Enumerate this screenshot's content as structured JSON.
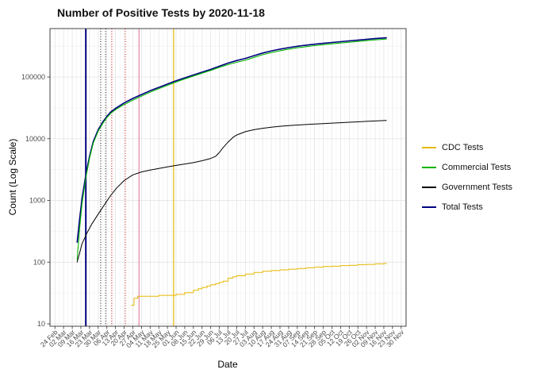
{
  "chart_data": {
    "type": "line",
    "title": "Number of Positive Tests by  2020-11-18",
    "xlabel": "Date",
    "ylabel": "Count (Log Scale)",
    "y_scale": "log10",
    "y_tick_labels": [
      "10",
      "100",
      "1000",
      "10000",
      "100000"
    ],
    "y_tick_values": [
      10,
      100,
      1000,
      10000,
      100000
    ],
    "ylim": [
      9.15,
      610000
    ],
    "x_unit": "days since 2020-02-24",
    "xlim": [
      -4,
      284
    ],
    "x_tick_days": [
      0,
      7,
      14,
      21,
      28,
      35,
      42,
      49,
      56,
      63,
      70,
      77,
      84,
      91,
      98,
      105,
      112,
      119,
      126,
      133,
      140,
      147,
      154,
      161,
      168,
      175,
      182,
      189,
      196,
      203,
      210,
      217,
      224,
      231,
      238,
      245,
      252,
      259,
      266,
      273,
      280
    ],
    "x_tick_labels": [
      "24 Feb",
      "02 Mar",
      "09 Mar",
      "16 Mar",
      "23 Mar",
      "30 Mar",
      "06 Apr",
      "13 Apr",
      "20 Apr",
      "27 Apr",
      "04 May",
      "11 May",
      "18 May",
      "25 May",
      "01 Jun",
      "08 Jun",
      "15 Jun",
      "22 Jun",
      "29 Jun",
      "06 Jul",
      "13 Jul",
      "20 Jul",
      "27 Jul",
      "03 Aug",
      "10 Aug",
      "17 Aug",
      "24 Aug",
      "31 Aug",
      "07 Sep",
      "14 Sep",
      "21 Sep",
      "28 Sep",
      "05 Oct",
      "12 Oct",
      "19 Oct",
      "26 Oct",
      "02 Nov",
      "09 Nov",
      "16 Nov",
      "23 Nov",
      "30 Nov"
    ],
    "legend_position": "right",
    "grid": true,
    "series": [
      {
        "name": "CDC Tests",
        "color": "#E6B800",
        "width": 1.0,
        "z": 4,
        "step": true,
        "points": [
          [
            62,
            20
          ],
          [
            64,
            26
          ],
          [
            67,
            28
          ],
          [
            70,
            28
          ],
          [
            84,
            29
          ],
          [
            98,
            30
          ],
          [
            105,
            32
          ],
          [
            112,
            35
          ],
          [
            116,
            37
          ],
          [
            119,
            39
          ],
          [
            123,
            41
          ],
          [
            126,
            43
          ],
          [
            130,
            45
          ],
          [
            133,
            47
          ],
          [
            136,
            49
          ],
          [
            140,
            55
          ],
          [
            144,
            58
          ],
          [
            147,
            60
          ],
          [
            154,
            64
          ],
          [
            161,
            68
          ],
          [
            168,
            71
          ],
          [
            175,
            73
          ],
          [
            182,
            75
          ],
          [
            189,
            77
          ],
          [
            196,
            79
          ],
          [
            203,
            81
          ],
          [
            210,
            83
          ],
          [
            217,
            85
          ],
          [
            224,
            86
          ],
          [
            231,
            88
          ],
          [
            238,
            89
          ],
          [
            245,
            91
          ],
          [
            252,
            92
          ],
          [
            259,
            94
          ],
          [
            266,
            95
          ],
          [
            268,
            96
          ]
        ]
      },
      {
        "name": "Commercial Tests",
        "color": "#00B400",
        "width": 1.1,
        "z": 2,
        "step": false,
        "points": [
          [
            18,
            110
          ],
          [
            20,
            360
          ],
          [
            22,
            900
          ],
          [
            25,
            2330
          ],
          [
            28,
            4840
          ],
          [
            31,
            8500
          ],
          [
            35,
            13300
          ],
          [
            39,
            18100
          ],
          [
            42,
            22000
          ],
          [
            45,
            25700
          ],
          [
            49,
            29600
          ],
          [
            56,
            35800
          ],
          [
            63,
            42300
          ],
          [
            70,
            49000
          ],
          [
            77,
            56800
          ],
          [
            84,
            64600
          ],
          [
            91,
            73400
          ],
          [
            98,
            83200
          ],
          [
            105,
            93000
          ],
          [
            112,
            103800
          ],
          [
            119,
            115500
          ],
          [
            126,
            128100
          ],
          [
            133,
            143900
          ],
          [
            140,
            159100
          ],
          [
            147,
            173400
          ],
          [
            154,
            186900
          ],
          [
            161,
            207900
          ],
          [
            168,
            230100
          ],
          [
            175,
            249500
          ],
          [
            182,
            267000
          ],
          [
            189,
            283600
          ],
          [
            196,
            298200
          ],
          [
            203,
            310900
          ],
          [
            210,
            322600
          ],
          [
            217,
            334300
          ],
          [
            224,
            345000
          ],
          [
            231,
            355700
          ],
          [
            238,
            366400
          ],
          [
            245,
            377100
          ],
          [
            252,
            388800
          ],
          [
            259,
            400500
          ],
          [
            266,
            410200
          ],
          [
            268,
            412100
          ]
        ]
      },
      {
        "name": "Government Tests",
        "color": "#000000",
        "width": 1.0,
        "z": 3,
        "step": false,
        "points": [
          [
            18,
            100
          ],
          [
            22,
            200
          ],
          [
            26,
            300
          ],
          [
            30,
            420
          ],
          [
            35,
            600
          ],
          [
            40,
            850
          ],
          [
            45,
            1200
          ],
          [
            50,
            1600
          ],
          [
            56,
            2100
          ],
          [
            63,
            2600
          ],
          [
            70,
            2900
          ],
          [
            77,
            3100
          ],
          [
            84,
            3300
          ],
          [
            91,
            3500
          ],
          [
            98,
            3700
          ],
          [
            105,
            3900
          ],
          [
            112,
            4100
          ],
          [
            119,
            4400
          ],
          [
            126,
            4800
          ],
          [
            130,
            5200
          ],
          [
            133,
            6000
          ],
          [
            136,
            7200
          ],
          [
            140,
            8800
          ],
          [
            144,
            10500
          ],
          [
            147,
            11500
          ],
          [
            154,
            13000
          ],
          [
            161,
            14000
          ],
          [
            168,
            14800
          ],
          [
            175,
            15400
          ],
          [
            182,
            15900
          ],
          [
            189,
            16300
          ],
          [
            196,
            16700
          ],
          [
            203,
            17000
          ],
          [
            210,
            17300
          ],
          [
            217,
            17600
          ],
          [
            224,
            17900
          ],
          [
            231,
            18200
          ],
          [
            238,
            18500
          ],
          [
            245,
            18800
          ],
          [
            252,
            19100
          ],
          [
            259,
            19400
          ],
          [
            266,
            19700
          ],
          [
            268,
            19800
          ]
        ]
      },
      {
        "name": "Total Tests",
        "color": "#000080",
        "width": 1.6,
        "z": 1,
        "step": false,
        "points": [
          [
            18,
            210
          ],
          [
            20,
            500
          ],
          [
            22,
            1100
          ],
          [
            25,
            2600
          ],
          [
            28,
            5200
          ],
          [
            31,
            9000
          ],
          [
            35,
            14000
          ],
          [
            39,
            19000
          ],
          [
            42,
            23000
          ],
          [
            45,
            27000
          ],
          [
            49,
            31000
          ],
          [
            56,
            38000
          ],
          [
            63,
            45000
          ],
          [
            70,
            52000
          ],
          [
            77,
            60000
          ],
          [
            84,
            68000
          ],
          [
            91,
            77000
          ],
          [
            98,
            87000
          ],
          [
            105,
            97000
          ],
          [
            112,
            108000
          ],
          [
            119,
            120000
          ],
          [
            126,
            133000
          ],
          [
            133,
            150000
          ],
          [
            140,
            168000
          ],
          [
            147,
            185000
          ],
          [
            154,
            200000
          ],
          [
            161,
            222000
          ],
          [
            168,
            245000
          ],
          [
            175,
            265000
          ],
          [
            182,
            283000
          ],
          [
            189,
            300000
          ],
          [
            196,
            315000
          ],
          [
            203,
            328000
          ],
          [
            210,
            340000
          ],
          [
            217,
            352000
          ],
          [
            224,
            363000
          ],
          [
            231,
            374000
          ],
          [
            238,
            385000
          ],
          [
            245,
            396000
          ],
          [
            252,
            408000
          ],
          [
            259,
            420000
          ],
          [
            266,
            430000
          ],
          [
            268,
            432000
          ]
        ]
      }
    ],
    "vlines": [
      {
        "day": 25,
        "color": "#000080",
        "style": "solid",
        "width": 2.0
      },
      {
        "day": 37,
        "color": "#000000",
        "style": "dotted",
        "width": 1.0
      },
      {
        "day": 41,
        "color": "#000000",
        "style": "dotted",
        "width": 1.0
      },
      {
        "day": 46,
        "color": "#CC0000",
        "style": "dotted",
        "width": 1.0
      },
      {
        "day": 57,
        "color": "#CC0000",
        "style": "dotted",
        "width": 1.0
      },
      {
        "day": 68,
        "color": "#DB7093",
        "style": "solid",
        "width": 1.0
      },
      {
        "day": 96,
        "color": "#E6B800",
        "style": "solid",
        "width": 1.2
      }
    ],
    "panel": {
      "background": "#FFFFFF",
      "border_color": "#333333",
      "grid_major": "#E0E0E0",
      "grid_minor": "#F0F0F0",
      "axis_text_color": "#4D4D4D"
    }
  }
}
